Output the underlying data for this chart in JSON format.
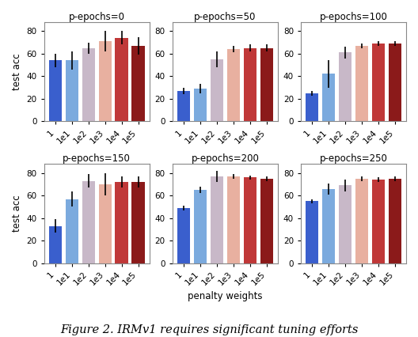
{
  "subplots": [
    {
      "title": "p-epochs=0",
      "values": [
        54,
        54,
        65,
        71,
        74,
        67
      ],
      "errors": [
        6,
        8,
        5,
        9,
        6,
        8
      ]
    },
    {
      "title": "p-epochs=50",
      "values": [
        27,
        29,
        55,
        64,
        65,
        65
      ],
      "errors": [
        3,
        4,
        7,
        3,
        3,
        3
      ]
    },
    {
      "title": "p-epochs=100",
      "values": [
        25,
        42,
        61,
        67,
        69,
        69
      ],
      "errors": [
        2,
        12,
        5,
        2,
        2,
        2
      ]
    },
    {
      "title": "p-epochs=150",
      "values": [
        33,
        57,
        73,
        70,
        72,
        72
      ],
      "errors": [
        6,
        7,
        6,
        10,
        5,
        5
      ]
    },
    {
      "title": "p-epochs=200",
      "values": [
        49,
        65,
        77,
        77,
        76,
        75
      ],
      "errors": [
        2,
        3,
        5,
        2,
        2,
        2
      ]
    },
    {
      "title": "p-epochs=250",
      "values": [
        55,
        66,
        69,
        75,
        74,
        75
      ],
      "errors": [
        2,
        5,
        5,
        2,
        2,
        2
      ]
    }
  ],
  "categories": [
    "1",
    "1e1",
    "1e2",
    "1e3",
    "1e4",
    "1e5"
  ],
  "bar_colors": [
    "#3a5fcd",
    "#7baade",
    "#c8b8c8",
    "#e8b0a0",
    "#c03838",
    "#8b1a1a"
  ],
  "xlabel": "penalty weights",
  "ylabel": "test acc",
  "ylim": [
    0,
    88
  ],
  "yticks": [
    0,
    20,
    40,
    60,
    80
  ],
  "caption": "Figure 2. IRMv1 requires significant tuning efforts",
  "title_fontsize": 8.5,
  "label_fontsize": 8.5,
  "tick_fontsize": 7.5,
  "caption_fontsize": 10.5
}
